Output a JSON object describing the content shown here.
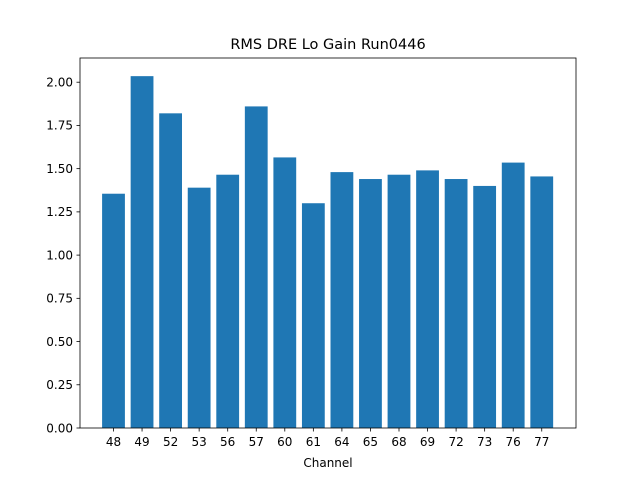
{
  "chart_data": {
    "type": "bar",
    "title": "RMS DRE Lo Gain Run0446",
    "xlabel": "Channel",
    "ylabel": "",
    "categories": [
      "48",
      "49",
      "52",
      "53",
      "56",
      "57",
      "60",
      "61",
      "64",
      "65",
      "68",
      "69",
      "72",
      "73",
      "76",
      "77"
    ],
    "values": [
      1.355,
      2.035,
      1.82,
      1.39,
      1.465,
      1.86,
      1.565,
      1.3,
      1.48,
      1.44,
      1.465,
      1.49,
      1.44,
      1.4,
      1.535,
      1.455
    ],
    "ylim": [
      0,
      2.14
    ],
    "yticks": [
      "0.00",
      "0.25",
      "0.50",
      "0.75",
      "1.00",
      "1.25",
      "1.50",
      "1.75",
      "2.00"
    ],
    "bar_color": "#1f77b4",
    "grid": false,
    "legend": false
  }
}
